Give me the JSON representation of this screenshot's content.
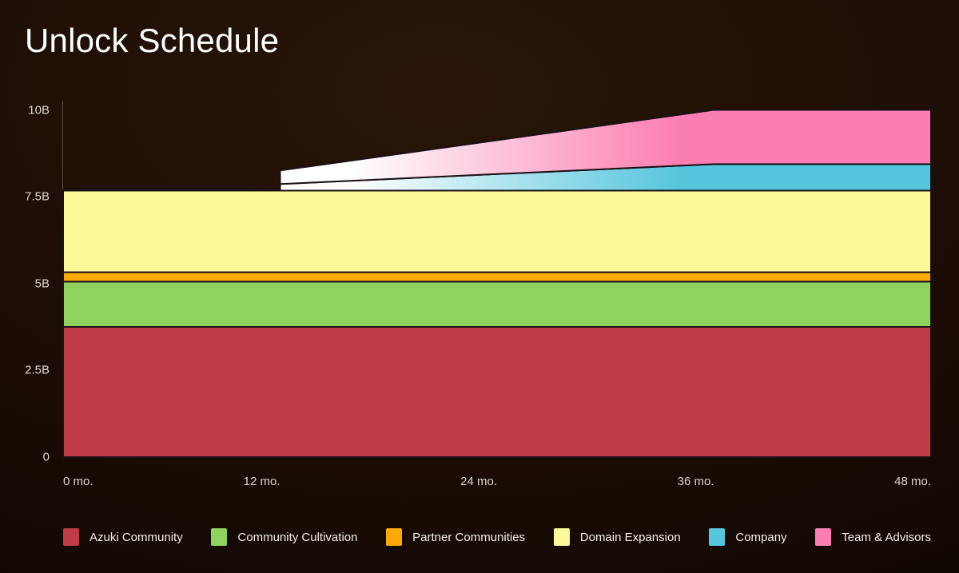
{
  "page": {
    "title": "Unlock Schedule"
  },
  "chart_data": {
    "type": "area",
    "stacked": true,
    "title": "Unlock Schedule",
    "xlabel": "",
    "ylabel": "",
    "x_unit": "months",
    "y_unit": "tokens (billions)",
    "xlim": [
      0,
      48
    ],
    "ylim": [
      0,
      10
    ],
    "total_at_48_months": "10B",
    "grid": false,
    "legend_position": "bottom",
    "xticks": [
      {
        "value": 0,
        "label": "0 mo."
      },
      {
        "value": 12,
        "label": "12 mo."
      },
      {
        "value": 24,
        "label": "24 mo."
      },
      {
        "value": 36,
        "label": "36 mo."
      },
      {
        "value": 48,
        "label": "48 mo."
      }
    ],
    "yticks": [
      {
        "value": 0,
        "label": "0"
      },
      {
        "value": 2.5,
        "label": "2.5B"
      },
      {
        "value": 5,
        "label": "5B"
      },
      {
        "value": 7.5,
        "label": "7.5B"
      },
      {
        "value": 10,
        "label": "10B"
      }
    ],
    "series": [
      {
        "name": "Azuki Community",
        "color": "#c13b49",
        "percent": 37.5,
        "billions": 3.75,
        "vesting": "fully unlocked from 0 mo.",
        "points_months_billions": [
          [
            0,
            3.75
          ],
          [
            48,
            3.75
          ]
        ]
      },
      {
        "name": "Community Cultivation",
        "color": "#8dd35e",
        "percent": 13.04,
        "billions": 1.304,
        "vesting": "fully unlocked from 0 mo.",
        "points_months_billions": [
          [
            0,
            1.304
          ],
          [
            48,
            1.304
          ]
        ]
      },
      {
        "name": "Partner Communities",
        "color": "#fbaa05",
        "percent": 2.71,
        "billions": 0.271,
        "vesting": "fully unlocked from 0 mo.",
        "points_months_billions": [
          [
            0,
            0.271
          ],
          [
            48,
            0.271
          ]
        ]
      },
      {
        "name": "Domain Expansion",
        "color": "#fafa98",
        "percent": 23.5,
        "billions": 2.35,
        "vesting": "fully unlocked from 0 mo.",
        "points_months_billions": [
          [
            0,
            2.35
          ],
          [
            48,
            2.35
          ]
        ]
      },
      {
        "name": "Company",
        "color": "#56c5de",
        "gradient_start_color": "#ffffff",
        "percent": 7.63,
        "billions": 0.763,
        "vesting": "0 until 12 mo. cliff, linear to full at 36 mo., flat to 48 mo.",
        "points_months_billions": [
          [
            0,
            0
          ],
          [
            11.999,
            0
          ],
          [
            12,
            0.19
          ],
          [
            36,
            0.763
          ],
          [
            48,
            0.763
          ]
        ]
      },
      {
        "name": "Team & Advisors",
        "color": "#fb7eb2",
        "gradient_start_color": "#ffffff",
        "percent": 15.62,
        "billions": 1.562,
        "vesting": "0 until 12 mo. cliff, linear to full at 36 mo., flat to 48 mo.",
        "points_months_billions": [
          [
            0,
            0
          ],
          [
            11.999,
            0
          ],
          [
            12,
            0.39
          ],
          [
            36,
            1.562
          ],
          [
            48,
            1.562
          ]
        ]
      }
    ]
  }
}
